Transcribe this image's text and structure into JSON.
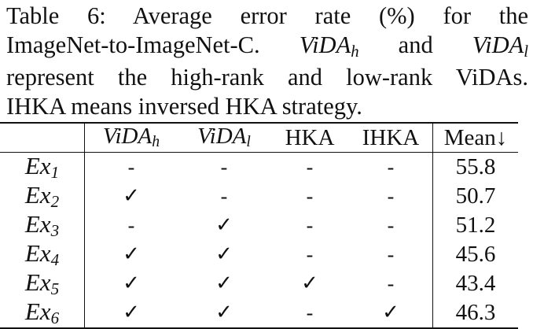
{
  "caption": {
    "label": "Table 6:",
    "line1_text": "Average error rate (%) for the",
    "line2_prefix": "ImageNet-to-ImageNet-C.",
    "vida_h_base": "ViDA",
    "vida_h_sub": "h",
    "line2_and": "and",
    "vida_l_base": "ViDA",
    "vida_l_sub": "l",
    "line3": "represent the high-rank and low-rank ViDAs.",
    "line4": "IHKA means inversed HKA strategy."
  },
  "table": {
    "headers": {
      "blank": "",
      "vida_h_base": "ViDA",
      "vida_h_sub": "h",
      "vida_l_base": "ViDA",
      "vida_l_sub": "l",
      "hka": "HKA",
      "ihka": "IHKA",
      "mean": "Mean↓"
    },
    "rows": [
      {
        "base": "Ex",
        "sub": "1",
        "vida_h": "-",
        "vida_l": "-",
        "hka": "-",
        "ihka": "-",
        "mean": "55.8"
      },
      {
        "base": "Ex",
        "sub": "2",
        "vida_h": "✓",
        "vida_l": "-",
        "hka": "-",
        "ihka": "-",
        "mean": "50.7"
      },
      {
        "base": "Ex",
        "sub": "3",
        "vida_h": "-",
        "vida_l": "✓",
        "hka": "-",
        "ihka": "-",
        "mean": "51.2"
      },
      {
        "base": "Ex",
        "sub": "4",
        "vida_h": "✓",
        "vida_l": "✓",
        "hka": "-",
        "ihka": "-",
        "mean": "45.6"
      },
      {
        "base": "Ex",
        "sub": "5",
        "vida_h": "✓",
        "vida_l": "✓",
        "hka": "✓",
        "ihka": "-",
        "mean": "43.4"
      },
      {
        "base": "Ex",
        "sub": "6",
        "vida_h": "✓",
        "vida_l": "✓",
        "hka": "-",
        "ihka": "✓",
        "mean": "46.3"
      }
    ]
  }
}
